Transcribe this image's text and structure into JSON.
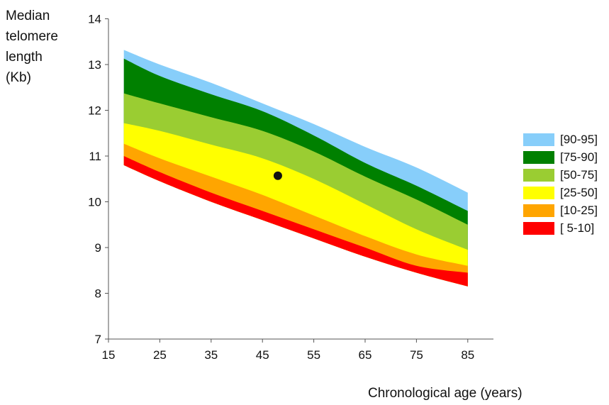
{
  "chart_data": {
    "type": "area",
    "ylabel_lines": [
      "Median",
      "telomere",
      "length",
      "(Kb)"
    ],
    "xlabel": "Chronological age (years)",
    "x_ticks": [
      15,
      25,
      35,
      45,
      55,
      65,
      75,
      85
    ],
    "y_ticks": [
      7,
      8,
      9,
      10,
      11,
      12,
      13,
      14
    ],
    "xlim": [
      15,
      90
    ],
    "ylim": [
      7,
      14
    ],
    "grid": false,
    "legend_position": "right",
    "x": [
      18,
      25,
      35,
      45,
      55,
      65,
      75,
      85
    ],
    "bands": [
      {
        "name": "[90-95]",
        "color": "#87CEFA",
        "upper": [
          13.32,
          13.0,
          12.6,
          12.15,
          11.7,
          11.2,
          10.75,
          10.2
        ]
      },
      {
        "name": "[75-90]",
        "color": "#008000",
        "upper": [
          13.13,
          12.75,
          12.35,
          11.98,
          11.45,
          10.85,
          10.35,
          9.8
        ]
      },
      {
        "name": "[50-75]",
        "color": "#9ACD32",
        "upper": [
          12.37,
          12.15,
          11.85,
          11.55,
          11.1,
          10.55,
          10.05,
          9.5
        ]
      },
      {
        "name": "[25-50]",
        "color": "#FFFF00",
        "upper": [
          11.72,
          11.55,
          11.25,
          10.95,
          10.5,
          9.95,
          9.4,
          8.95
        ]
      },
      {
        "name": "[10-25]",
        "color": "#FFA500",
        "upper": [
          11.27,
          10.95,
          10.55,
          10.15,
          9.7,
          9.25,
          8.85,
          8.6
        ]
      },
      {
        "name": "[ 5-10]",
        "color": "#FF0000",
        "upper": [
          11.0,
          10.65,
          10.2,
          9.8,
          9.4,
          9.0,
          8.6,
          8.45
        ],
        "lower": [
          10.8,
          10.45,
          10.0,
          9.6,
          9.2,
          8.8,
          8.45,
          8.15
        ]
      }
    ],
    "points": [
      {
        "x": 48,
        "y": 10.57
      }
    ]
  }
}
